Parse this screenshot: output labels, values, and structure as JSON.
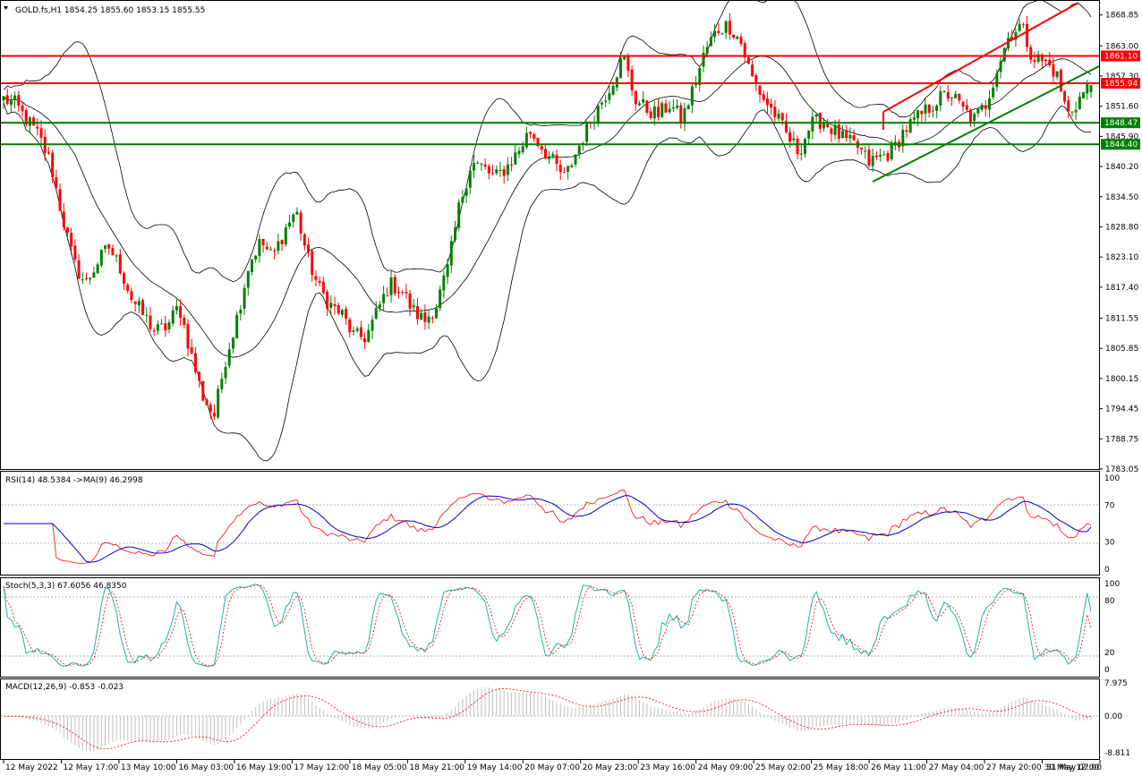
{
  "colors": {
    "bull": "#008000",
    "bear": "#ff0000",
    "band": "#000000",
    "resistance": "#ff0000",
    "support": "#008000",
    "rsi": "#ff0000",
    "rsi_ma": "#0000cd",
    "stoch_main": "#20b2aa",
    "stoch_signal": "#ff0000",
    "macd_hist": "#c0c0c0",
    "macd_signal": "#ff0000"
  },
  "main": {
    "header_label": "GOLD.fs,H1  1854.25 1855.60 1853.15 1855.55",
    "price_axis": [
      "1868.85",
      "1863.00",
      "1857.30",
      "1851.60",
      "1845.90",
      "1840.20",
      "1834.50",
      "1828.80",
      "1823.10",
      "1817.40",
      "1811.55",
      "1805.85",
      "1800.15",
      "1794.45",
      "1788.75",
      "1783.05"
    ],
    "level_tags": [
      "1861.10",
      "1855.94",
      "1848.47",
      "1844.40"
    ]
  },
  "rsi": {
    "label": "RSI(14) 48.5384  ->MA(9) 46.2998",
    "axis": [
      "100",
      "70",
      "30",
      "0"
    ]
  },
  "stoch": {
    "label": "Stoch(5,3,3) 67.6056 46.8350",
    "axis": [
      "100",
      "80",
      "20",
      "0"
    ]
  },
  "macd": {
    "label": "MACD(12,26,9) -0.853 -0.023",
    "axis": [
      "7.975",
      "0.00",
      "-8.811"
    ]
  },
  "time_axis": [
    "12 May 2022",
    "12 May 17:00",
    "13 May 10:00",
    "16 May 03:00",
    "16 May 19:00",
    "17 May 12:00",
    "18 May 05:00",
    "18 May 21:00",
    "19 May 14:00",
    "20 May 07:00",
    "20 May 23:00",
    "23 May 16:00",
    "24 May 09:00",
    "25 May 02:00",
    "25 May 18:00",
    "26 May 11:00",
    "27 May 04:00",
    "27 May 20:00",
    "30 May 12:00",
    "31 May 07:00"
  ],
  "chart_data": [
    {
      "type": "candlestick",
      "symbol": "GOLD.fs",
      "timeframe": "H1",
      "last_bar": {
        "open": 1854.25,
        "high": 1855.6,
        "low": 1853.15,
        "close": 1855.55
      },
      "ylim": [
        1783.05,
        1871.5
      ],
      "horizontal_levels": [
        {
          "value": 1861.1,
          "color": "red"
        },
        {
          "value": 1855.94,
          "color": "red"
        },
        {
          "value": 1848.47,
          "color": "green"
        },
        {
          "value": 1844.4,
          "color": "green"
        }
      ],
      "waypoints": [
        1853,
        1852,
        1849,
        1846,
        1841,
        1831,
        1822,
        1818,
        1822,
        1825,
        1821,
        1815,
        1812,
        1809,
        1810,
        1814,
        1805,
        1797,
        1793,
        1804,
        1812,
        1822,
        1826,
        1823,
        1828,
        1832,
        1823,
        1817,
        1814,
        1812,
        1808,
        1808,
        1813,
        1818,
        1817,
        1813,
        1811,
        1814,
        1821,
        1833,
        1841,
        1840,
        1838,
        1840,
        1843,
        1847,
        1844,
        1841,
        1838,
        1843,
        1848,
        1852,
        1856,
        1861,
        1853,
        1851,
        1850,
        1852,
        1849,
        1855,
        1862,
        1866,
        1867,
        1864,
        1857,
        1853,
        1850,
        1846,
        1843,
        1848,
        1849,
        1847,
        1845,
        1844,
        1841,
        1842,
        1843,
        1847,
        1849,
        1851,
        1853,
        1854,
        1851,
        1849,
        1852,
        1859,
        1865,
        1867,
        1861,
        1860,
        1858,
        1850,
        1853,
        1856
      ]
    },
    {
      "type": "line",
      "name": "RSI(14)",
      "value": 48.5384,
      "ma9": 46.2998,
      "ylim": [
        0,
        100
      ],
      "levels": [
        70,
        30
      ]
    },
    {
      "type": "line",
      "name": "Stoch(5,3,3)",
      "main": 67.6056,
      "signal": 46.835,
      "ylim": [
        0,
        100
      ],
      "levels": [
        80,
        20
      ]
    },
    {
      "type": "bar",
      "name": "MACD(12,26,9)",
      "main": -0.853,
      "signal": -0.023,
      "ylim": [
        -8.811,
        7.975
      ]
    }
  ]
}
